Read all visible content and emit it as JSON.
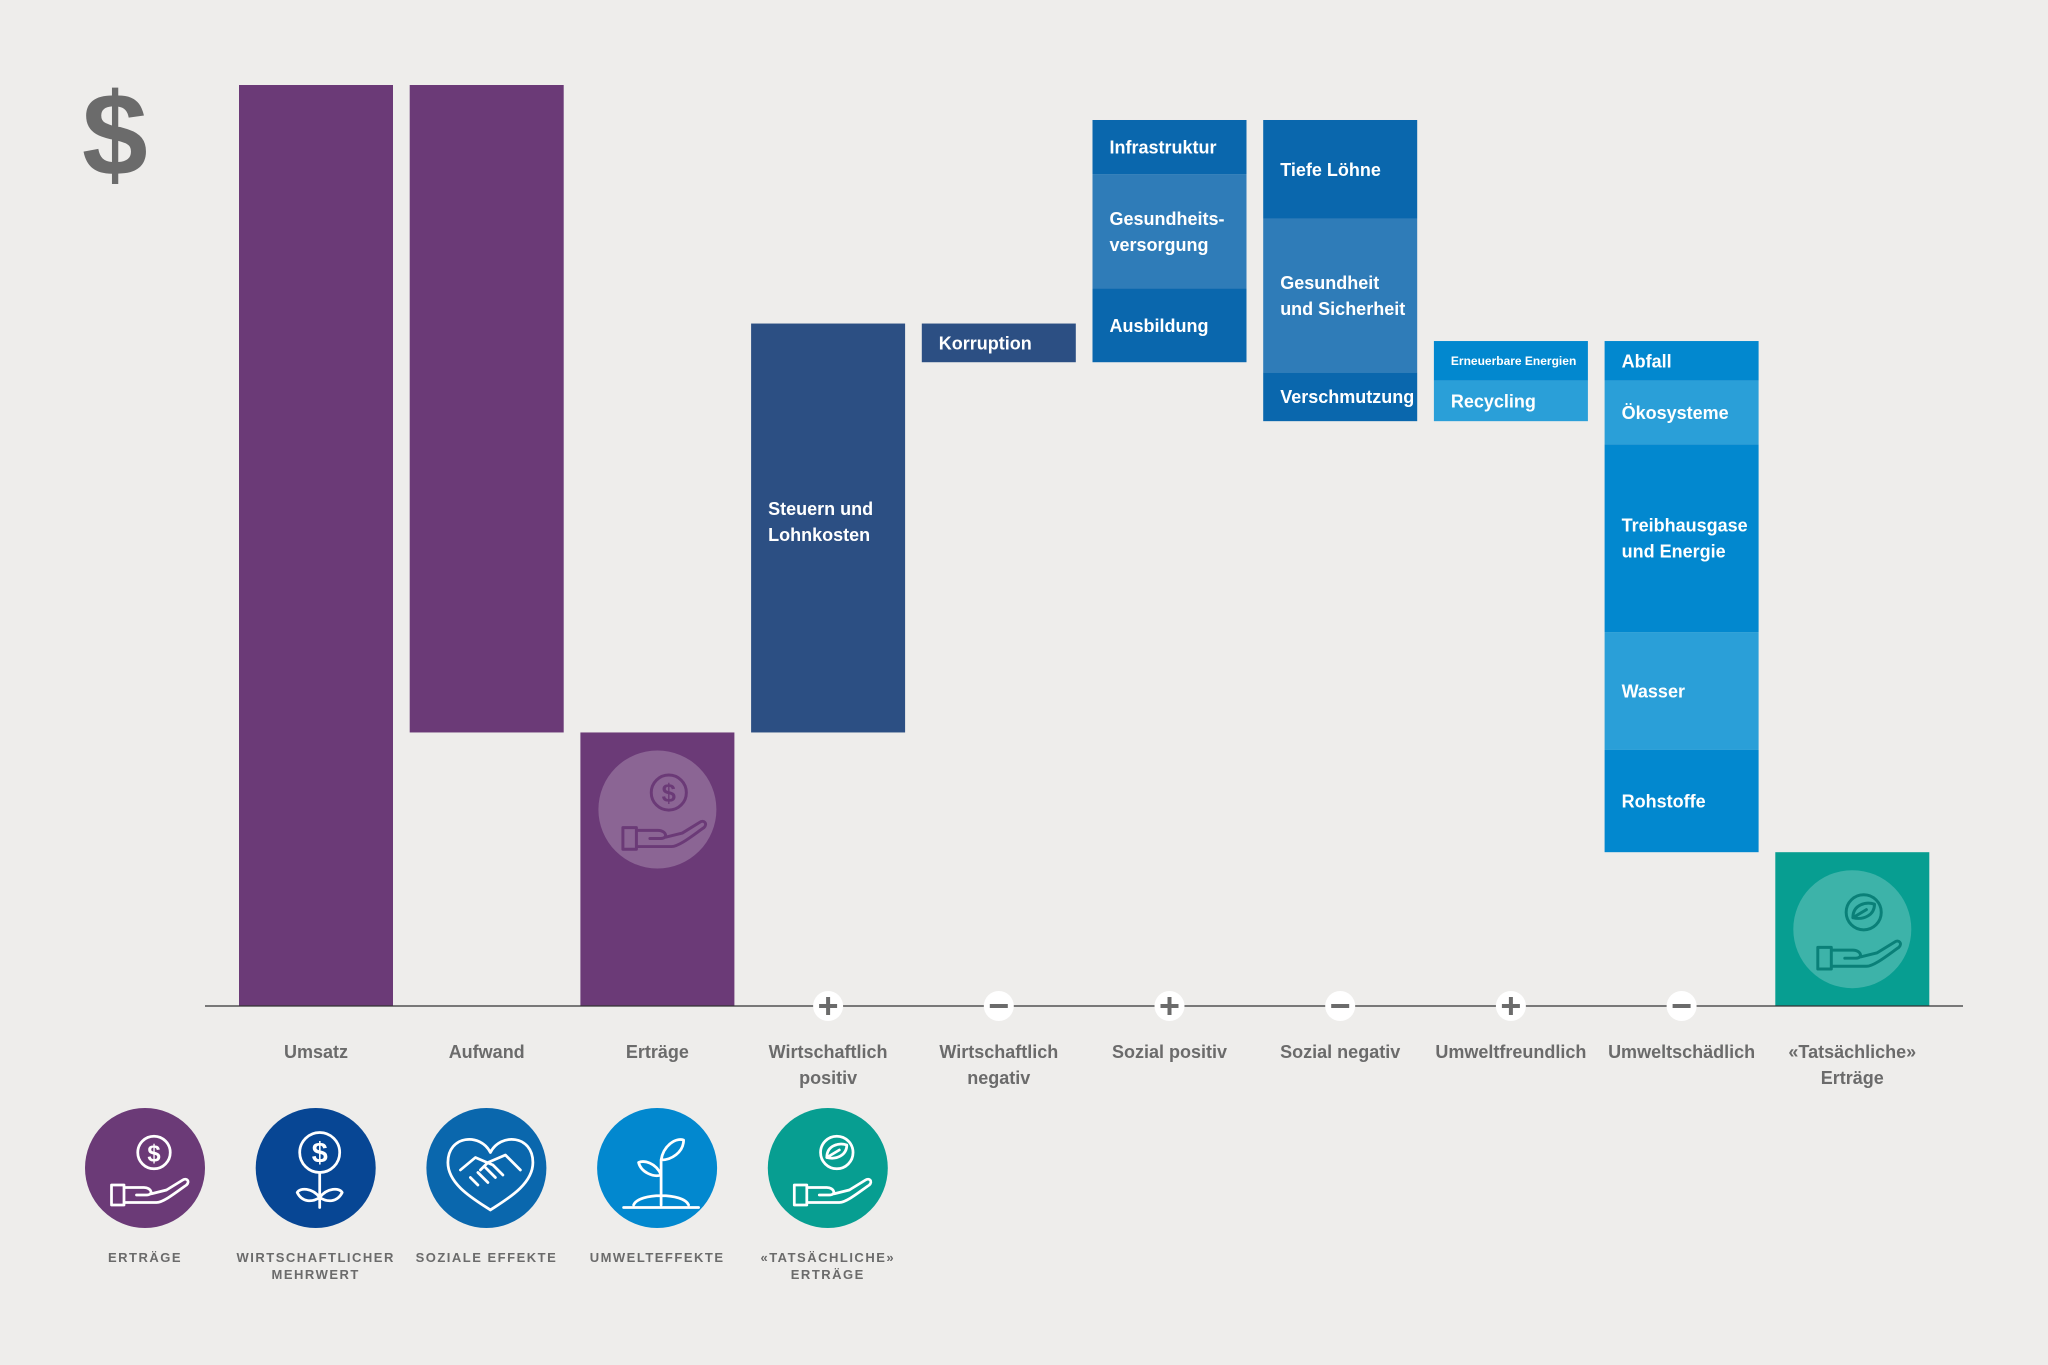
{
  "currency_symbol": "$",
  "chart_data": {
    "type": "bar",
    "subtype": "waterfall",
    "ylim": [
      0,
      100
    ],
    "colors": {
      "revenue": "#6b3a77",
      "economic": "#2c4f83",
      "social_dark": "#0a67ad",
      "social_mid": "#2f7cb8",
      "env_dark": "#0288cf",
      "env_mid": "#2a9fd8",
      "real": "#079e91"
    },
    "categories": [
      {
        "label": "Umsatz",
        "sign": "",
        "segments": [
          {
            "text": "",
            "from": 0,
            "to": 100,
            "color": "revenue"
          }
        ]
      },
      {
        "label": "Aufwand",
        "sign": "",
        "segments": [
          {
            "text": "",
            "from": 29.7,
            "to": 100,
            "color": "revenue"
          }
        ]
      },
      {
        "label": "Erträge",
        "sign": "",
        "icon": "hand-coin-icon",
        "segments": [
          {
            "text": "",
            "from": 0,
            "to": 29.7,
            "color": "revenue"
          }
        ]
      },
      {
        "label": "Wirtschaftlich positiv",
        "sign": "+",
        "segments": [
          {
            "text": "Steuern und Lohnkosten",
            "from": 29.7,
            "to": 74.1,
            "color": "economic"
          }
        ]
      },
      {
        "label": "Wirtschaftlich negativ",
        "sign": "−",
        "segments": [
          {
            "text": "Korruption",
            "from": 69.9,
            "to": 74.1,
            "color": "economic"
          }
        ]
      },
      {
        "label": "Sozial positiv",
        "sign": "+",
        "segments": [
          {
            "text": "Ausbildung",
            "from": 69.9,
            "to": 77.9,
            "color": "social_dark"
          },
          {
            "text": "Gesundheits- versorgung",
            "from": 77.9,
            "to": 90.3,
            "color": "social_mid"
          },
          {
            "text": "Infrastruktur",
            "from": 90.3,
            "to": 96.2,
            "color": "social_dark"
          }
        ]
      },
      {
        "label": "Sozial negativ",
        "sign": "−",
        "segments": [
          {
            "text": "Verschmutzung",
            "from": 63.5,
            "to": 68.8,
            "color": "social_dark"
          },
          {
            "text": "Gesundheit und Sicherheit",
            "from": 68.8,
            "to": 85.5,
            "color": "social_mid"
          },
          {
            "text": "Tiefe Löhne",
            "from": 85.5,
            "to": 96.2,
            "color": "social_dark"
          }
        ]
      },
      {
        "label": "Umweltfreundlich",
        "sign": "+",
        "segments": [
          {
            "text": "Recycling",
            "from": 63.5,
            "to": 67.9,
            "color": "env_mid"
          },
          {
            "text": "Erneuerbare Energien",
            "from": 67.9,
            "to": 72.2,
            "color": "env_dark",
            "small": true
          }
        ]
      },
      {
        "label": "Umweltschädlich",
        "sign": "−",
        "segments": [
          {
            "text": "Rohstoffe",
            "from": 16.7,
            "to": 27.8,
            "color": "env_dark"
          },
          {
            "text": "Wasser",
            "from": 27.8,
            "to": 40.6,
            "color": "env_mid"
          },
          {
            "text": "Treibhausgase und Energie",
            "from": 40.6,
            "to": 61.0,
            "color": "env_dark"
          },
          {
            "text": "Ökosysteme",
            "from": 61.0,
            "to": 67.9,
            "color": "env_mid"
          },
          {
            "text": "Abfall",
            "from": 67.9,
            "to": 72.2,
            "color": "env_dark"
          }
        ]
      },
      {
        "label": "«Tatsächliche» Erträge",
        "sign": "",
        "icon": "hand-leaf-icon",
        "segments": [
          {
            "text": "",
            "from": 0,
            "to": 16.7,
            "color": "real"
          }
        ]
      }
    ]
  },
  "legend": [
    {
      "label": "ERTRÄGE",
      "color": "#6b3a77",
      "icon": "hand-coin-icon"
    },
    {
      "label": "WIRTSCHAFTLICHER MEHRWERT",
      "color": "#074694",
      "icon": "money-plant-icon"
    },
    {
      "label": "SOZIALE EFFEKTE",
      "color": "#0a67ad",
      "icon": "heart-handshake-icon"
    },
    {
      "label": "UMWELTEFFEKTE",
      "color": "#0288cf",
      "icon": "sprout-icon"
    },
    {
      "label": "«TATSÄCHLICHE» ERTRÄGE",
      "color": "#079e91",
      "icon": "hand-leaf-icon"
    }
  ]
}
